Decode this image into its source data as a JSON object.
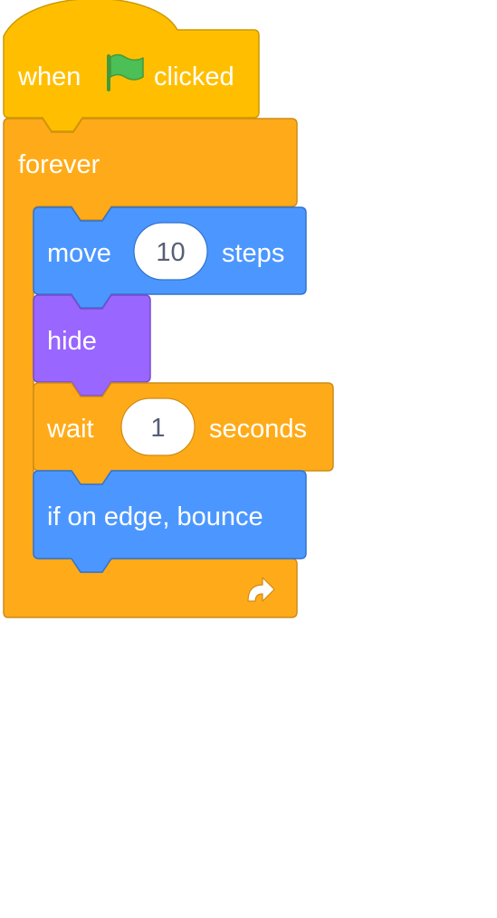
{
  "script": {
    "hat_block": {
      "category": "events",
      "label_before": "when",
      "icon": "green-flag-icon",
      "label_after": "clicked"
    },
    "forever_block": {
      "category": "control",
      "label": "forever",
      "loop_arrow_icon": "loop-arrow-icon"
    },
    "move_block": {
      "category": "motion",
      "label_before": "move",
      "value": "10",
      "label_after": "steps"
    },
    "hide_block": {
      "category": "looks",
      "label": "hide"
    },
    "wait_block": {
      "category": "control",
      "label_before": "wait",
      "value": "1",
      "label_after": "seconds"
    },
    "bounce_block": {
      "category": "motion",
      "label": "if on edge, bounce"
    }
  },
  "colors": {
    "events_fill": "#ffbf00",
    "events_border": "#cc9900",
    "control_fill": "#ffab19",
    "control_border": "#cf8b17",
    "motion_fill": "#4c97ff",
    "motion_border": "#3373cc",
    "looks_fill": "#9966ff",
    "looks_border": "#774dcb",
    "flag_green": "#4cbf56",
    "flag_pole": "#45993d",
    "input_fill": "#ffffff",
    "input_text": "#575e75"
  }
}
